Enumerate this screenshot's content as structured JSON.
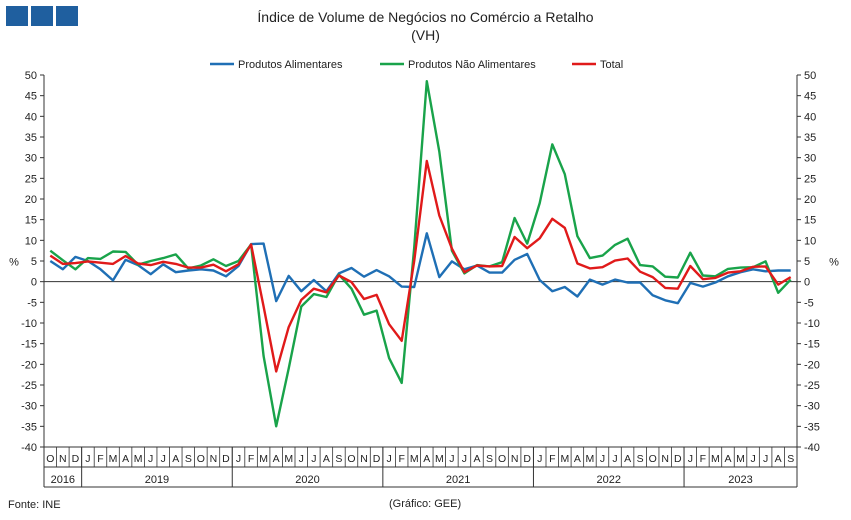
{
  "header": {
    "logo_colors": [
      "#1f5f9f",
      "#1f5f9f",
      "#1f5f9f"
    ]
  },
  "chart_data": {
    "type": "line",
    "title": "Índice de Volume de Negócios no Comércio a Retalho",
    "subtitle": "(VH)",
    "ylabel_left": "%",
    "ylabel_right": "%",
    "ylim": [
      -40,
      50
    ],
    "yticks": [
      50,
      45,
      40,
      35,
      30,
      25,
      20,
      15,
      10,
      5,
      0,
      -5,
      -10,
      -15,
      -20,
      -25,
      -30,
      -35,
      -40
    ],
    "grid": false,
    "legend_position": "top-center",
    "months": [
      "O",
      "N",
      "D",
      "J",
      "F",
      "M",
      "A",
      "M",
      "J",
      "J",
      "A",
      "S",
      "O",
      "N",
      "D",
      "J",
      "F",
      "M",
      "A",
      "M",
      "J",
      "J",
      "A",
      "S",
      "O",
      "N",
      "D",
      "J",
      "F",
      "M",
      "A",
      "M",
      "J",
      "J",
      "A",
      "S",
      "O",
      "N",
      "D",
      "J",
      "F",
      "M",
      "A",
      "M",
      "J",
      "J",
      "A",
      "S",
      "O",
      "N",
      "D",
      "J",
      "F",
      "M",
      "A",
      "M",
      "J",
      "J",
      "A",
      "S"
    ],
    "years": [
      {
        "label": "2016",
        "start": 0,
        "count": 3
      },
      {
        "label": "2019",
        "start": 3,
        "count": 12
      },
      {
        "label": "2020",
        "start": 15,
        "count": 12
      },
      {
        "label": "2021",
        "start": 27,
        "count": 12
      },
      {
        "label": "2022",
        "start": 39,
        "count": 12
      },
      {
        "label": "2023",
        "start": 51,
        "count": 9
      }
    ],
    "series": [
      {
        "name": "Produtos Alimentares",
        "color": "#1f6fb5",
        "values": [
          5,
          3,
          6,
          5,
          3,
          0.3,
          5.3,
          4,
          1.8,
          4.2,
          2.3,
          2.7,
          3,
          2.7,
          1.3,
          3.8,
          9.1,
          9.2,
          -4.7,
          1.4,
          -2.3,
          0.4,
          -2.3,
          2,
          3.3,
          1.2,
          2.8,
          1.3,
          -1.2,
          -1.3,
          11.7,
          1.1,
          4.9,
          3,
          3.9,
          2.2,
          2.2,
          5.3,
          6.7,
          0.4,
          -2.3,
          -1.3,
          -3.6,
          0.5,
          -0.7,
          0.5,
          -0.2,
          -0.2,
          -3.3,
          -4.5,
          -5.2,
          -0.3,
          -1.2,
          -0.2,
          1.3,
          2.3,
          3,
          2.5,
          2.7,
          2.7
        ]
      },
      {
        "name": "Produtos Não Alimentares",
        "color": "#19a34a",
        "values": [
          7.5,
          5.2,
          3,
          5.7,
          5.5,
          7.3,
          7.2,
          4.1,
          5,
          5.7,
          6.6,
          3.2,
          3.9,
          5.4,
          3.8,
          5,
          9,
          -18,
          -35,
          -21,
          -6,
          -3,
          -3.7,
          1.7,
          -1.7,
          -8,
          -7,
          -18.5,
          -24.5,
          8.2,
          48.5,
          31.5,
          7.5,
          2,
          4,
          3.7,
          4.7,
          15.4,
          9.2,
          19,
          33.2,
          26,
          11,
          5.7,
          6.3,
          8.9,
          10.4,
          4,
          3.7,
          1.2,
          1,
          7,
          1.5,
          1.3,
          3.1,
          3.4,
          3.5,
          4.9,
          -2.7,
          0.5
        ]
      },
      {
        "name": "Total",
        "color": "#e01a1a",
        "values": [
          6.3,
          4.3,
          4.5,
          4.9,
          4.6,
          4.3,
          6.2,
          4.4,
          4,
          4.8,
          4.3,
          3.4,
          3.4,
          4.1,
          2.5,
          4.2,
          9,
          -6,
          -21.7,
          -11,
          -4.4,
          -1.7,
          -2.6,
          1.5,
          -0.1,
          -4.2,
          -3.2,
          -10.3,
          -14.3,
          5,
          29.2,
          16,
          8,
          2.3,
          3.9,
          3.7,
          3.8,
          10.8,
          8.1,
          10.5,
          15.2,
          13,
          4.4,
          3.2,
          3.5,
          5.1,
          5.6,
          2.4,
          1.1,
          -1.5,
          -1.7,
          3.8,
          0.6,
          0.9,
          2.2,
          2.5,
          3.6,
          3.7,
          -0.7,
          1.1
        ]
      }
    ]
  },
  "footer": {
    "source": "Fonte: INE",
    "credit": "(Gráfico: GEE)"
  }
}
